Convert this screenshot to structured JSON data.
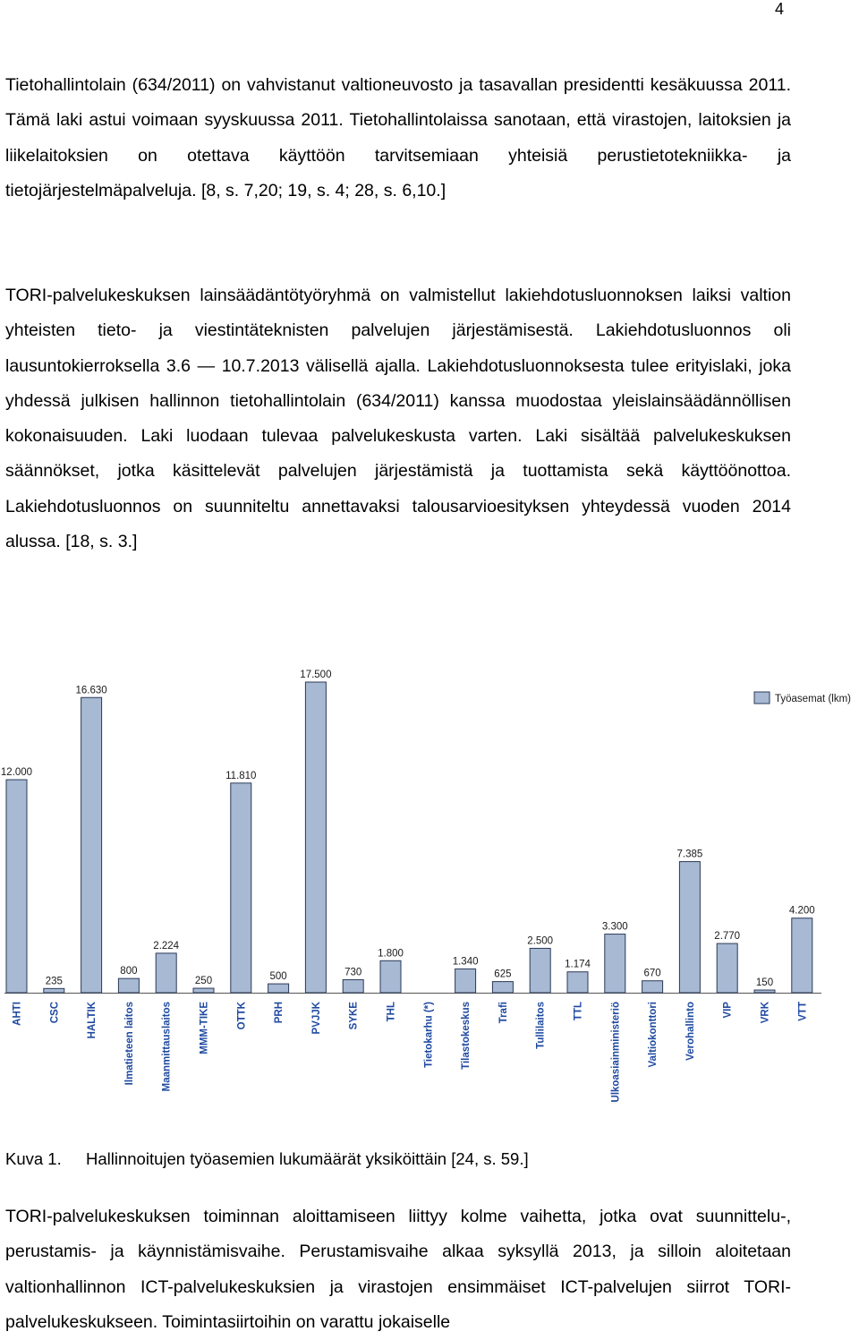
{
  "page": {
    "number": "4"
  },
  "paragraphs": [
    "Tietohallintolain (634/2011) on vahvistanut valtioneuvosto ja tasavallan presidentti kesäkuussa 2011. Tämä laki astui voimaan syyskuussa 2011. Tietohallintolaissa sanotaan, että virastojen, laitoksien ja liikelaitoksien on otettava käyttöön tarvitsemiaan yhteisiä perustietotekniikka- ja tietojärjestelmäpalveluja. [8, s. 7,20; 19, s. 4; 28, s. 6,10.]",
    "TORI-palvelukeskuksen lainsäädäntötyöryhmä on valmistellut lakiehdotusluonnoksen laiksi valtion yhteisten tieto- ja viestintäteknisten palvelujen järjestämisestä. Lakiehdotusluonnos oli lausuntokierroksella 3.6 — 10.7.2013 välisellä ajalla. Lakiehdotusluonnoksesta tulee erityislaki, joka yhdessä julkisen hallinnon tietohallintolain (634/2011) kanssa muodostaa yleislainsäädännöllisen kokonaisuuden. Laki luodaan tulevaa palvelukeskusta varten. Laki sisältää palvelukeskuksen säännökset, jotka käsittelevät palvelujen järjestämistä ja tuottamista sekä käyttöönottoa. Lakiehdotusluonnos on suunniteltu annettavaksi talousarvioesityksen yhteydessä vuoden 2014 alussa. [18, s. 3.]",
    "TORI-palvelukeskuksen toiminnan aloittamiseen liittyy kolme vaihetta, jotka ovat suunnittelu-, perustamis- ja käynnistämisvaihe. Perustamisvaihe alkaa syksyllä 2013, ja silloin aloitetaan valtionhallinnon ICT-palvelukeskuksien ja virastojen ensimmäiset ICT-palvelujen siirrot TORI-palvelukeskukseen. Toimintasiirtoihin on varattu jokaiselle"
  ],
  "caption": {
    "number": "Kuva 1.",
    "text": "Hallinnoitujen työasemien lukumäärät yksiköittäin [24, s. 59.]"
  },
  "colors": {
    "bar_fill": "#a7b9d3",
    "bar_stroke": "#2b3a57",
    "category_text": "#1f4aa0"
  },
  "chart_data": {
    "type": "bar",
    "categories": [
      "AHTI",
      "CSC",
      "HALTIK",
      "Ilmatieteen laitos",
      "Maanmittauslaitos",
      "MMM-TIKE",
      "OTTK",
      "PRH",
      "PVJJK",
      "SYKE",
      "THL",
      "Tietokarhu (*)",
      "Tilastokeskus",
      "Trafi",
      "Tullilaitos",
      "TTL",
      "Ulkoasiainministeriö",
      "Valtiokonttori",
      "Verohallinto",
      "VIP",
      "VRK",
      "VTT"
    ],
    "series": [
      {
        "name": "Työasemat (lkm)",
        "values": [
          12000,
          235,
          16630,
          800,
          2224,
          250,
          11810,
          500,
          17500,
          730,
          1800,
          0,
          1340,
          625,
          2500,
          1174,
          3300,
          670,
          7385,
          2770,
          150,
          4200
        ]
      }
    ],
    "value_labels": [
      "12.000",
      "235",
      "16.630",
      "800",
      "2.224",
      "250",
      "11.810",
      "500",
      "17.500",
      "730",
      "1.800",
      "",
      "1.340",
      "625",
      "2.500",
      "1.174",
      "3.300",
      "670",
      "7.385",
      "2.770",
      "150",
      "4.200"
    ],
    "ylim": [
      0,
      17500
    ],
    "grid": false,
    "legend": "top-right"
  }
}
